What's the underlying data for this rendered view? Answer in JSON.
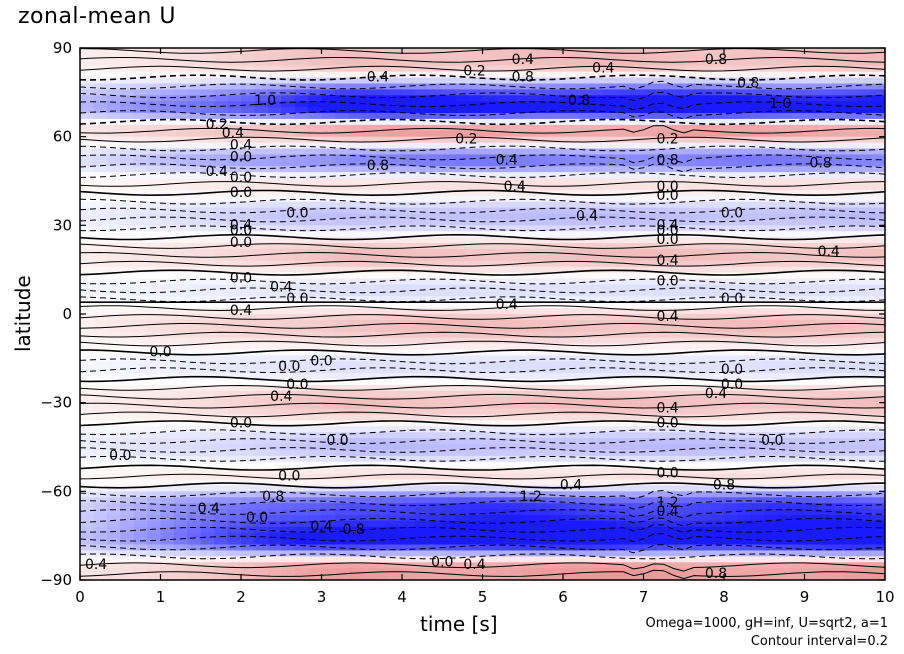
{
  "chart_data": {
    "type": "contour",
    "title": "zonal-mean U",
    "xlabel": "time [s]",
    "ylabel": "latitude",
    "xlim": [
      0,
      10
    ],
    "ylim": [
      -90,
      90
    ],
    "x_ticks": [
      0,
      1,
      2,
      3,
      4,
      5,
      6,
      7,
      8,
      9,
      10
    ],
    "y_ticks": [
      -90,
      -60,
      -30,
      0,
      30,
      60,
      90
    ],
    "y_tick_labels": [
      "−90",
      "−60",
      "−30",
      "0",
      "30",
      "60",
      "90"
    ],
    "contour_interval": 0.2,
    "colors": {
      "positive": "#e06060",
      "negative": "#1a1aff",
      "zero": "#ffffff"
    },
    "bands": [
      {
        "lat": 85,
        "value": 0.4
      },
      {
        "lat": 70,
        "value": -1.6
      },
      {
        "lat": 62,
        "value": 0.6
      },
      {
        "lat": 52,
        "value": -0.8
      },
      {
        "lat": 44,
        "value": 0.2
      },
      {
        "lat": 33,
        "value": -0.4
      },
      {
        "lat": 20,
        "value": 0.4
      },
      {
        "lat": 8,
        "value": -0.2
      },
      {
        "lat": -4,
        "value": 0.4
      },
      {
        "lat": -18,
        "value": -0.2
      },
      {
        "lat": -30,
        "value": 0.4
      },
      {
        "lat": -45,
        "value": -0.4
      },
      {
        "lat": -55,
        "value": 0.2
      },
      {
        "lat": -66,
        "value": -1.2
      },
      {
        "lat": -76,
        "value": -1.6
      },
      {
        "lat": -86,
        "value": 0.6
      }
    ],
    "contour_labels": [
      {
        "x": 5.5,
        "y": 86,
        "text": "0.4"
      },
      {
        "x": 7.9,
        "y": 86,
        "text": "0.8"
      },
      {
        "x": 4.9,
        "y": 82,
        "text": "0.2"
      },
      {
        "x": 5.5,
        "y": 80,
        "text": "0.8"
      },
      {
        "x": 6.5,
        "y": 83,
        "text": "0.4"
      },
      {
        "x": 3.7,
        "y": 80,
        "text": "0.4"
      },
      {
        "x": 2.3,
        "y": 72,
        "text": "1.0"
      },
      {
        "x": 6.2,
        "y": 72,
        "text": "0.8"
      },
      {
        "x": 8.7,
        "y": 71,
        "text": "1.0"
      },
      {
        "x": 8.3,
        "y": 78,
        "text": "0.8"
      },
      {
        "x": 1.7,
        "y": 64,
        "text": "0.2"
      },
      {
        "x": 1.9,
        "y": 61,
        "text": "0.4"
      },
      {
        "x": 4.8,
        "y": 59,
        "text": "0.2"
      },
      {
        "x": 7.3,
        "y": 59,
        "text": "0.2"
      },
      {
        "x": 2.0,
        "y": 57,
        "text": "0.4"
      },
      {
        "x": 2.0,
        "y": 53,
        "text": "0.0"
      },
      {
        "x": 3.7,
        "y": 50,
        "text": "0.8"
      },
      {
        "x": 5.3,
        "y": 52,
        "text": "0.4"
      },
      {
        "x": 1.7,
        "y": 48,
        "text": "0.4"
      },
      {
        "x": 2.0,
        "y": 46,
        "text": "0.0"
      },
      {
        "x": 2.0,
        "y": 41,
        "text": "0.0"
      },
      {
        "x": 5.4,
        "y": 43,
        "text": "0.4"
      },
      {
        "x": 9.2,
        "y": 51,
        "text": "0.8"
      },
      {
        "x": 7.3,
        "y": 52,
        "text": "0.8"
      },
      {
        "x": 7.3,
        "y": 43,
        "text": "0.0"
      },
      {
        "x": 7.3,
        "y": 40,
        "text": "0.0"
      },
      {
        "x": 2.7,
        "y": 34,
        "text": "0.0"
      },
      {
        "x": 6.3,
        "y": 33,
        "text": "0.4"
      },
      {
        "x": 8.1,
        "y": 34,
        "text": "0.0"
      },
      {
        "x": 2.0,
        "y": 30,
        "text": "0.4"
      },
      {
        "x": 2.0,
        "y": 28,
        "text": "0.0"
      },
      {
        "x": 2.0,
        "y": 24,
        "text": "0.0"
      },
      {
        "x": 7.3,
        "y": 30,
        "text": "0.4"
      },
      {
        "x": 7.3,
        "y": 28,
        "text": "0.0"
      },
      {
        "x": 7.3,
        "y": 25,
        "text": "0.0"
      },
      {
        "x": 9.3,
        "y": 21,
        "text": "0.4"
      },
      {
        "x": 7.3,
        "y": 18,
        "text": "0.4"
      },
      {
        "x": 2.0,
        "y": 12,
        "text": "0.0"
      },
      {
        "x": 2.5,
        "y": 9,
        "text": "0.4"
      },
      {
        "x": 2.7,
        "y": 5,
        "text": "0.0"
      },
      {
        "x": 7.3,
        "y": 11,
        "text": "0.0"
      },
      {
        "x": 8.1,
        "y": 5,
        "text": "0.0"
      },
      {
        "x": 2.0,
        "y": 1,
        "text": "0.4"
      },
      {
        "x": 5.3,
        "y": 3,
        "text": "0.4"
      },
      {
        "x": 7.3,
        "y": -1,
        "text": "0.4"
      },
      {
        "x": 1.0,
        "y": -13,
        "text": "0.0"
      },
      {
        "x": 3.0,
        "y": -16,
        "text": "0.0"
      },
      {
        "x": 2.6,
        "y": -18,
        "text": "0.0"
      },
      {
        "x": 2.7,
        "y": -24,
        "text": "0.0"
      },
      {
        "x": 2.5,
        "y": -28,
        "text": "0.4"
      },
      {
        "x": 8.1,
        "y": -19,
        "text": "0.0"
      },
      {
        "x": 8.1,
        "y": -24,
        "text": "0.0"
      },
      {
        "x": 7.9,
        "y": -27,
        "text": "0.4"
      },
      {
        "x": 7.3,
        "y": -32,
        "text": "0.4"
      },
      {
        "x": 7.3,
        "y": -37,
        "text": "0.0"
      },
      {
        "x": 2.0,
        "y": -37,
        "text": "0.0"
      },
      {
        "x": 3.2,
        "y": -43,
        "text": "0.0"
      },
      {
        "x": 8.6,
        "y": -43,
        "text": "0.0"
      },
      {
        "x": 0.5,
        "y": -48,
        "text": "0.0"
      },
      {
        "x": 2.6,
        "y": -55,
        "text": "0.0"
      },
      {
        "x": 7.3,
        "y": -54,
        "text": "0.0"
      },
      {
        "x": 6.1,
        "y": -58,
        "text": "0.4"
      },
      {
        "x": 8.0,
        "y": -58,
        "text": "0.8"
      },
      {
        "x": 5.6,
        "y": -62,
        "text": "1.2"
      },
      {
        "x": 2.4,
        "y": -62,
        "text": "0.8"
      },
      {
        "x": 1.6,
        "y": -66,
        "text": "0.4"
      },
      {
        "x": 2.2,
        "y": -69,
        "text": "0.0"
      },
      {
        "x": 7.3,
        "y": -64,
        "text": "1.2"
      },
      {
        "x": 7.3,
        "y": -67,
        "text": "0.4"
      },
      {
        "x": 3.0,
        "y": -72,
        "text": "0.4"
      },
      {
        "x": 3.4,
        "y": -73,
        "text": "0.8"
      },
      {
        "x": 0.2,
        "y": -85,
        "text": "0.4"
      },
      {
        "x": 4.5,
        "y": -84,
        "text": "0.0"
      },
      {
        "x": 4.9,
        "y": -85,
        "text": "0.4"
      },
      {
        "x": 7.9,
        "y": -88,
        "text": "0.8"
      }
    ]
  },
  "footer": {
    "params": "Omega=1000, gH=inf, U=sqrt2, a=1",
    "contour_interval": "Contour interval=0.2"
  }
}
